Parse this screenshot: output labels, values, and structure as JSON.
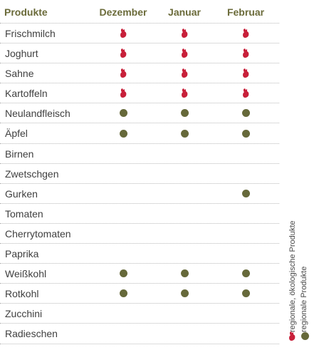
{
  "header": {
    "product_label": "Produkte",
    "months": [
      "Dezember",
      "Januar",
      "Februar"
    ]
  },
  "colors": {
    "regional_bio": "#c8203a",
    "regional": "#66693a"
  },
  "icons": {
    "regional_bio": "rooster-icon",
    "regional": "dot-icon"
  },
  "rows": [
    {
      "name": "Frischmilch",
      "marks": [
        "bio",
        "bio",
        "bio"
      ]
    },
    {
      "name": "Joghurt",
      "marks": [
        "bio",
        "bio",
        "bio"
      ]
    },
    {
      "name": "Sahne",
      "marks": [
        "bio",
        "bio",
        "bio"
      ]
    },
    {
      "name": "Kartoffeln",
      "marks": [
        "bio",
        "bio",
        "bio"
      ]
    },
    {
      "name": "Neulandfleisch",
      "marks": [
        "regional",
        "regional",
        "regional"
      ]
    },
    {
      "name": "Äpfel",
      "marks": [
        "regional",
        "regional",
        "regional"
      ]
    },
    {
      "name": "Birnen",
      "marks": [
        "",
        "",
        ""
      ]
    },
    {
      "name": "Zwetschgen",
      "marks": [
        "",
        "",
        ""
      ]
    },
    {
      "name": "Gurken",
      "marks": [
        "",
        "",
        "regional"
      ]
    },
    {
      "name": "Tomaten",
      "marks": [
        "",
        "",
        ""
      ]
    },
    {
      "name": "Cherrytomaten",
      "marks": [
        "",
        "",
        ""
      ]
    },
    {
      "name": "Paprika",
      "marks": [
        "",
        "",
        ""
      ]
    },
    {
      "name": "Weißkohl",
      "marks": [
        "regional",
        "regional",
        "regional"
      ]
    },
    {
      "name": "Rotkohl",
      "marks": [
        "regional",
        "regional",
        "regional"
      ]
    },
    {
      "name": "Zucchini",
      "marks": [
        "",
        "",
        ""
      ]
    },
    {
      "name": "Radieschen",
      "marks": [
        "",
        "",
        ""
      ]
    }
  ],
  "legend": {
    "bio_label": "regionale, ökologische Produkte",
    "regional_label": "regionale Produkte"
  }
}
